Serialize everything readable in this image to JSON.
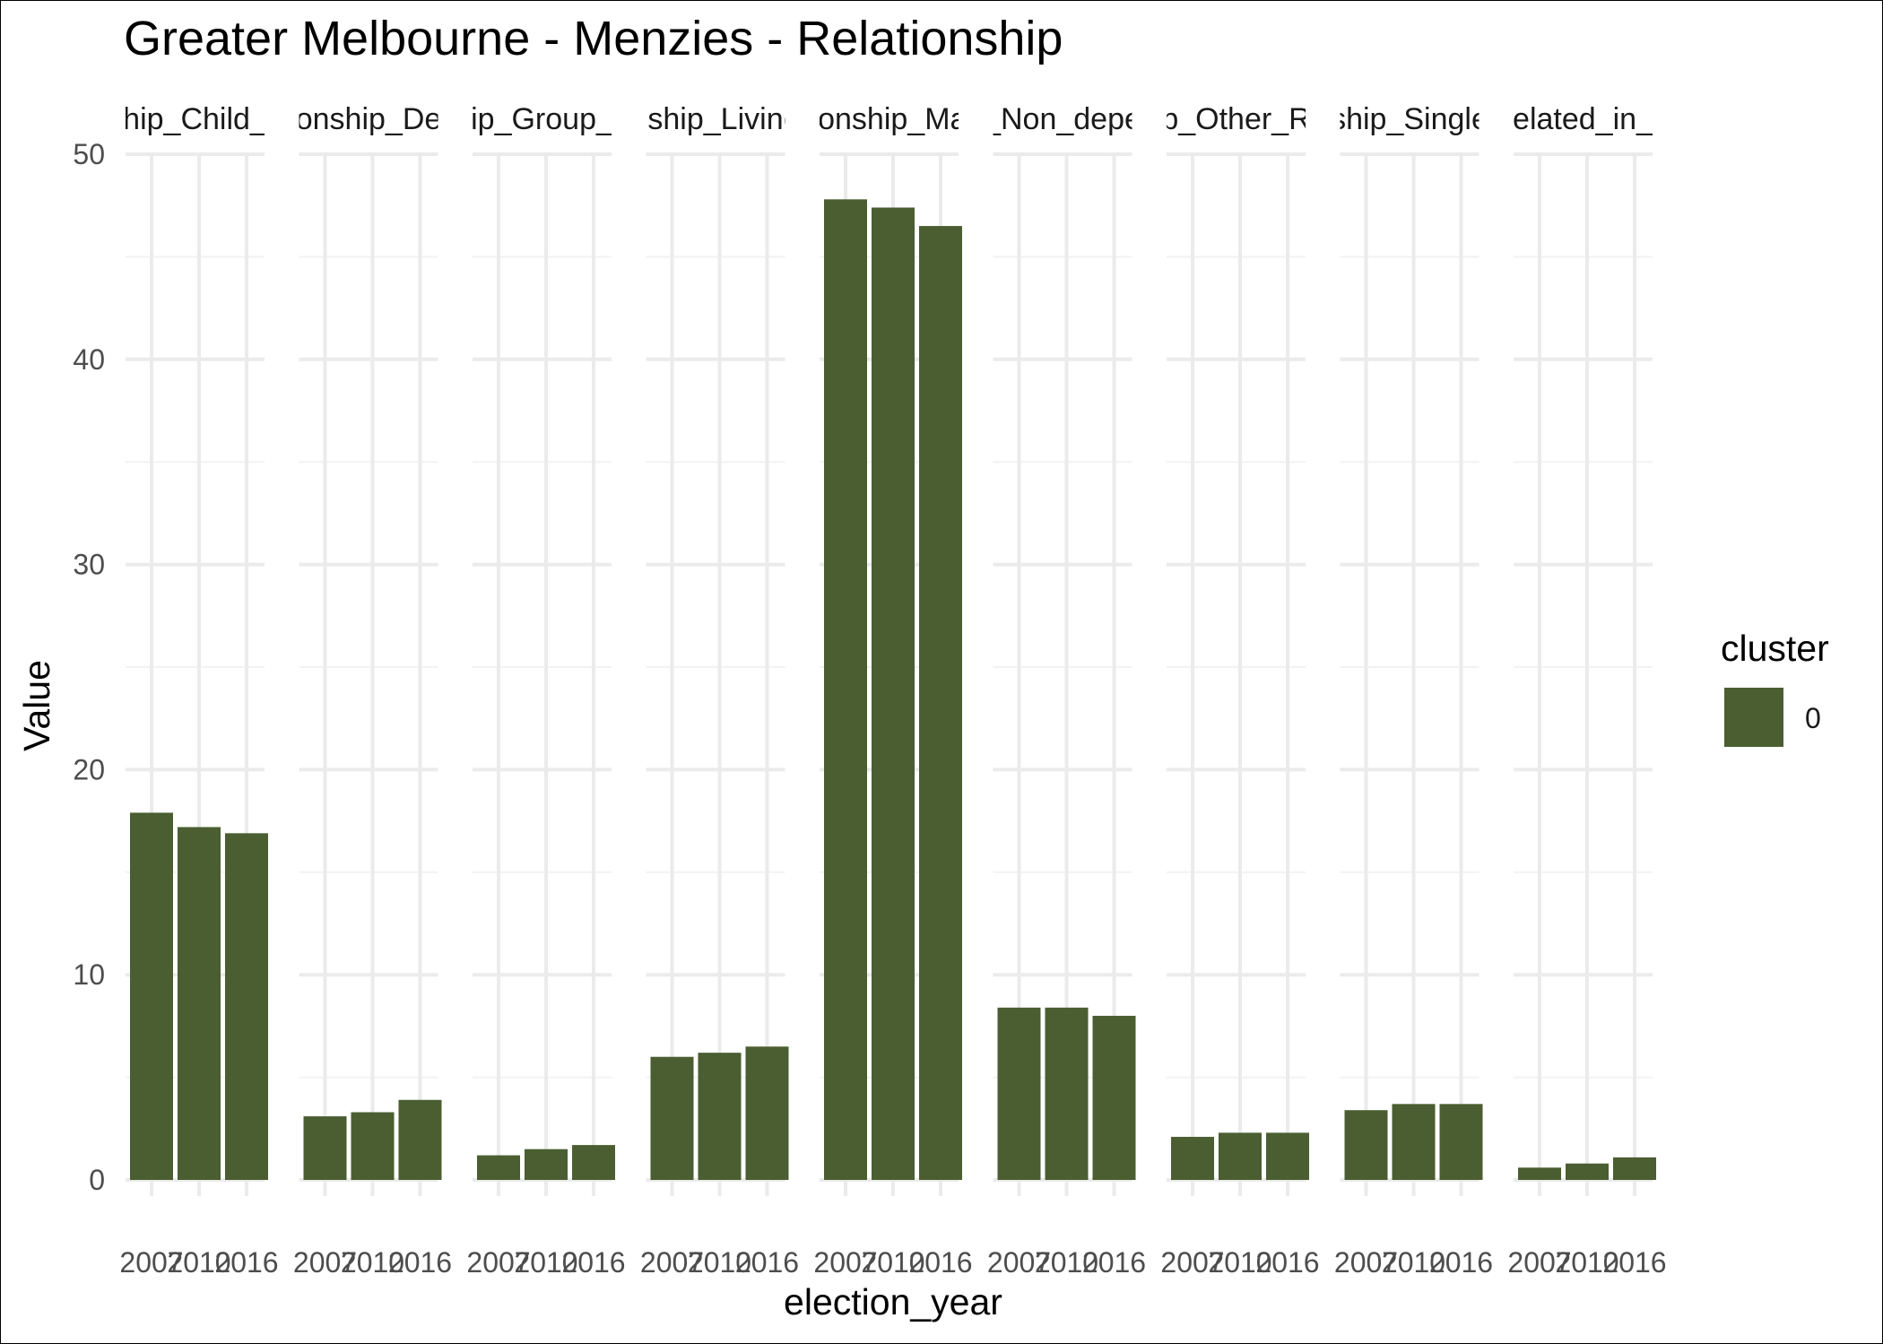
{
  "chart_data": {
    "type": "bar",
    "title": "Greater Melbourne - Menzies - Relationship",
    "xlabel": "election_year",
    "ylabel": "Value",
    "ylim": [
      0,
      50
    ],
    "y_ticks": [
      "0",
      "10",
      "20",
      "30",
      "40",
      "50"
    ],
    "x_tick_labels": [
      "2007",
      "2010",
      "2016"
    ],
    "grid": true,
    "facets": [
      {
        "strip": "hip_Child_",
        "values": [
          17.9,
          17.2,
          16.9
        ]
      },
      {
        "strip": "onship_De",
        "values": [
          3.1,
          3.3,
          3.9
        ]
      },
      {
        "strip": "ip_Group_",
        "values": [
          1.2,
          1.5,
          1.7
        ]
      },
      {
        "strip": "nship_Living",
        "values": [
          6.0,
          6.2,
          6.5
        ]
      },
      {
        "strip": "ionship_Ma",
        "values": [
          47.8,
          47.4,
          46.5
        ]
      },
      {
        "strip": "_Non_depe",
        "values": [
          8.4,
          8.4,
          8.0
        ]
      },
      {
        "strip": "p_Other_R",
        "values": [
          2.1,
          2.3,
          2.3
        ]
      },
      {
        "strip": "ship_Single",
        "values": [
          3.4,
          3.7,
          3.7
        ]
      },
      {
        "strip": "elated_in_",
        "values": [
          0.6,
          0.8,
          1.1
        ]
      }
    ],
    "series": [
      {
        "name": "0",
        "color": "#4a5e31"
      }
    ],
    "legend": {
      "title": "cluster",
      "position": "right",
      "entries": [
        "0"
      ]
    }
  }
}
